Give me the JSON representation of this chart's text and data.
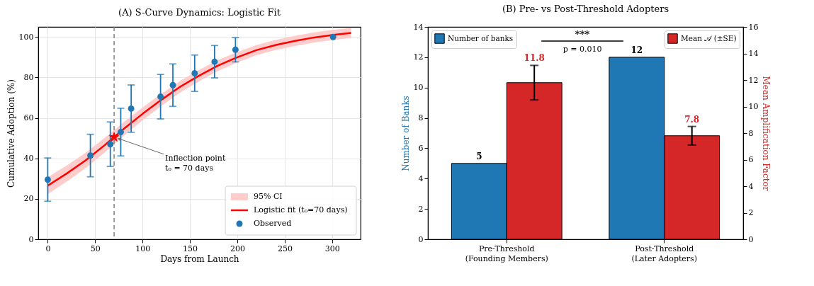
{
  "chart_data": [
    {
      "type": "line",
      "title": "(A) S-Curve Dynamics: Logistic Fit",
      "xlabel": "Days from Launch",
      "ylabel": "Cumulative Adoption (%)",
      "xlim": [
        -10,
        330
      ],
      "xticks": [
        0,
        50,
        100,
        150,
        200,
        250,
        300
      ],
      "ylim": [
        0,
        105
      ],
      "yticks": [
        0,
        20,
        40,
        60,
        80,
        100
      ],
      "grid": true,
      "legend": "bottom right",
      "ref_lines": [
        {
          "axis": "x",
          "value": 70,
          "color": "#808080",
          "line_style": "dashed"
        }
      ],
      "annotations": [
        {
          "text": "Inflection point\nt₀ = 70 days",
          "x": 70,
          "y": 50.5
        },
        "95% CI"
      ],
      "series": [
        {
          "name": "Logistic fit (t₀=70 days)",
          "type": "line",
          "color": "#ff0000",
          "x": [
            0,
            20,
            40,
            60,
            70,
            80,
            100,
            120,
            140,
            160,
            180,
            200,
            220,
            240,
            260,
            280,
            300,
            320
          ],
          "values": [
            26.5,
            32.5,
            39,
            46.5,
            50.5,
            54.5,
            62,
            69,
            75.5,
            81,
            86,
            90,
            93.5,
            96,
            98,
            99.7,
            101,
            102
          ],
          "lower": [
            22.3,
            28.5,
            35.2,
            42.9,
            47,
            51.1,
            58.8,
            66,
            72.6,
            78.2,
            83.3,
            87.4,
            91,
            93.5,
            95.5,
            97.2,
            98.5,
            99.5
          ],
          "upper": [
            30.7,
            36.5,
            42.8,
            50.1,
            54,
            57.9,
            65.2,
            72,
            78.4,
            83.8,
            88.7,
            92.6,
            96,
            98.5,
            100.5,
            102.2,
            103.5,
            104.5
          ]
        },
        {
          "name": "Observed",
          "type": "scatter",
          "color": "#1f77b4",
          "marker": "circle",
          "x": [
            0,
            45,
            66,
            77,
            88,
            119,
            132,
            155,
            176,
            198,
            301
          ],
          "values": [
            29.5,
            41.4,
            47,
            53,
            64.6,
            70.5,
            76.2,
            82.1,
            87.8,
            93.7,
            100
          ],
          "errors": [
            10.7,
            10.5,
            11,
            11.8,
            11.7,
            11,
            10.5,
            9,
            8,
            6,
            null
          ]
        },
        {
          "type": "scatter",
          "color": "#ff0000",
          "marker": "star",
          "x": [
            70
          ],
          "values": [
            50.5
          ]
        }
      ]
    },
    {
      "type": "bar",
      "title": "(B) Pre- vs Post-Threshold Adopters",
      "categories": [
        "Pre-Threshold\n(Founding Members)",
        "Post-Threshold\n(Later Adopters)"
      ],
      "ylabel": "Number of Banks",
      "y2label": "Mean Amplification Factor",
      "ylim": [
        0,
        14
      ],
      "yticks": [
        0,
        2,
        4,
        6,
        8,
        10,
        12,
        14
      ],
      "y2lim": [
        0,
        16
      ],
      "y2ticks": [
        0,
        2,
        4,
        6,
        8,
        10,
        12,
        14,
        16
      ],
      "legend": "top",
      "data_labels": true,
      "annotations": [
        "***",
        "p = 0.010"
      ],
      "series": [
        {
          "name": "Number of banks",
          "color": "#1f77b4",
          "values": [
            5,
            12
          ]
        },
        {
          "name": "Mean 𝒜 (±SE)",
          "color": "#d62728",
          "axis": "y2",
          "values": [
            11.8,
            7.8
          ],
          "errors": [
            1.3,
            0.7
          ]
        }
      ]
    }
  ]
}
